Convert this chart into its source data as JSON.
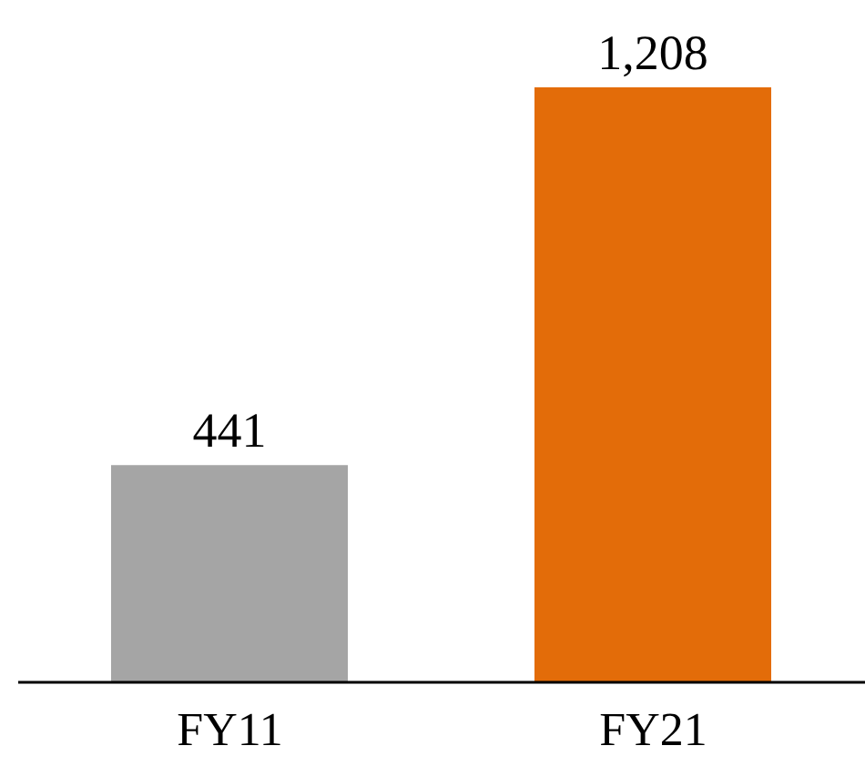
{
  "chart_data": {
    "type": "bar",
    "categories": [
      "FY11",
      "FY21"
    ],
    "values": [
      441,
      1208
    ],
    "colors": [
      "#a5a5a5",
      "#e36c09"
    ],
    "value_labels": [
      "441",
      "1,208"
    ]
  }
}
